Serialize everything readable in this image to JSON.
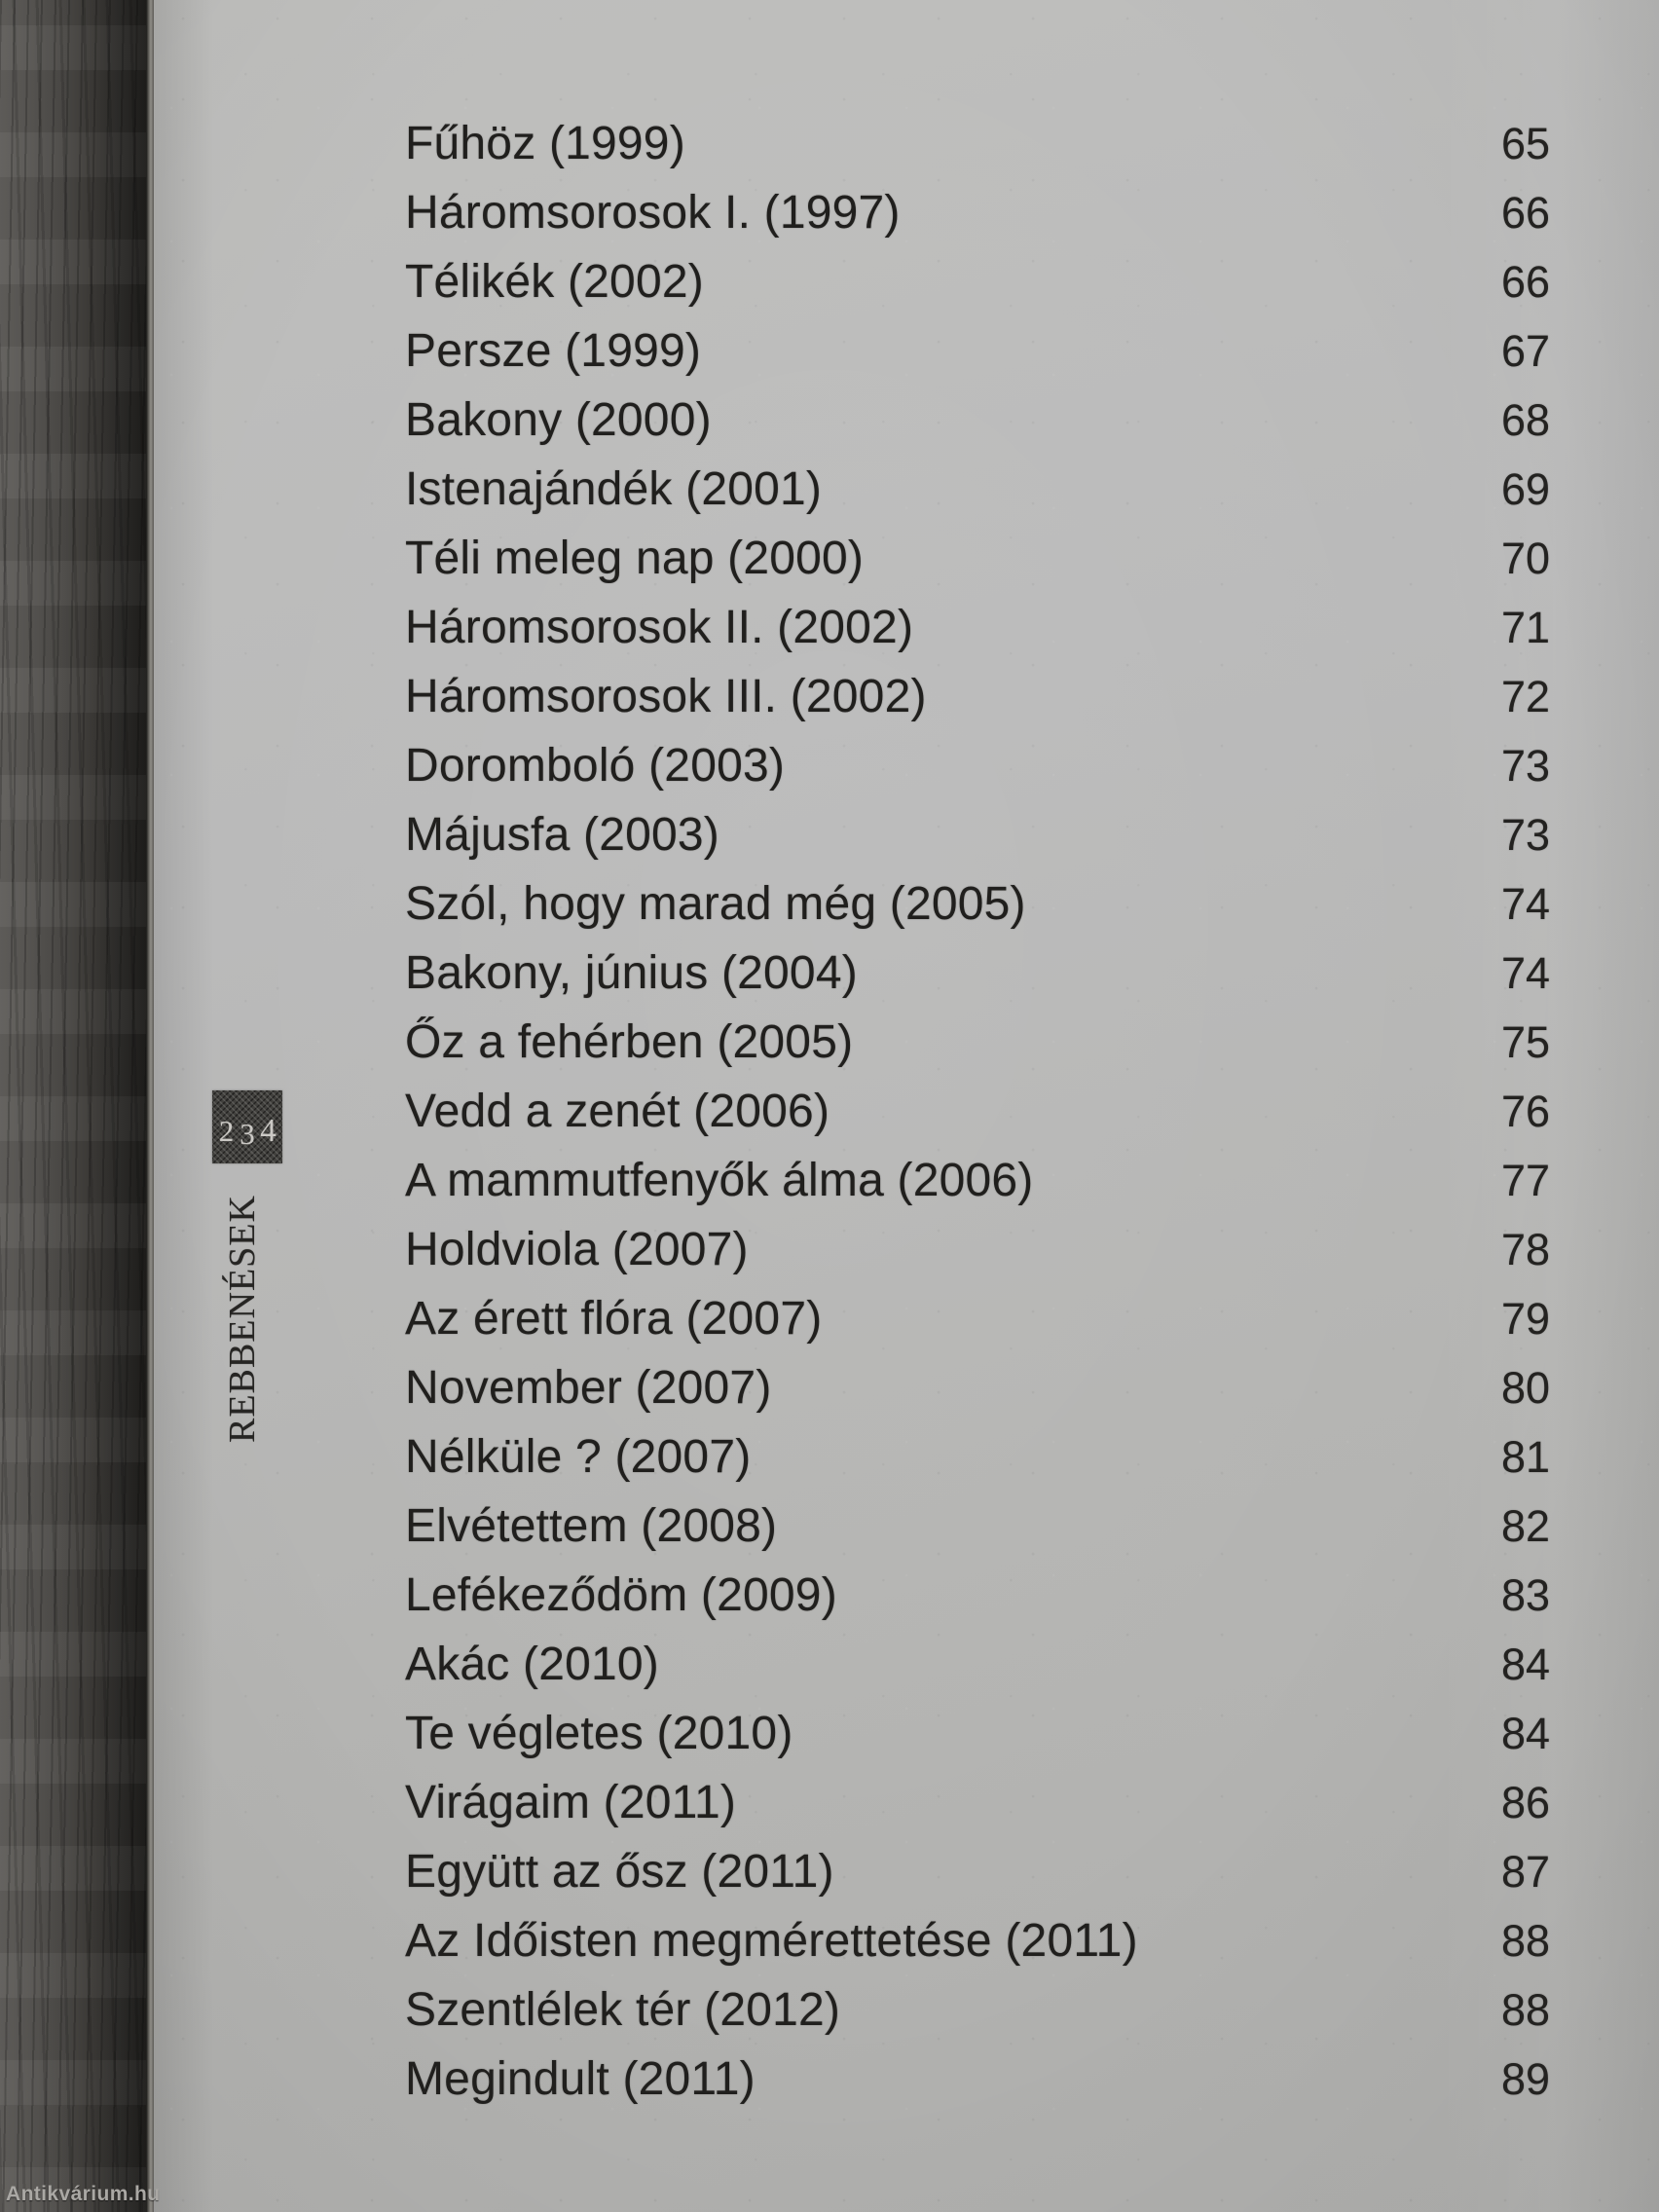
{
  "document": {
    "kind": "scanned-book-table-of-contents-page",
    "spine_page_number": "234",
    "spine_section_title": "REBBENÉSEK",
    "watermark": "Antikvárium.hu"
  },
  "toc": {
    "entries": [
      {
        "title": "Fűhöz (1999)",
        "page": "65"
      },
      {
        "title": "Háromsorosok I. (1997)",
        "page": "66"
      },
      {
        "title": "Télikék (2002)",
        "page": "66"
      },
      {
        "title": "Persze (1999)",
        "page": "67"
      },
      {
        "title": "Bakony (2000)",
        "page": "68"
      },
      {
        "title": "Istenajándék (2001)",
        "page": "69"
      },
      {
        "title": "Téli meleg nap (2000)",
        "page": "70"
      },
      {
        "title": "Háromsorosok II. (2002)",
        "page": "71"
      },
      {
        "title": "Háromsorosok III. (2002)",
        "page": "72"
      },
      {
        "title": "Doromboló (2003)",
        "page": "73"
      },
      {
        "title": "Májusfa (2003)",
        "page": "73"
      },
      {
        "title": "Szól, hogy marad még (2005)",
        "page": "74"
      },
      {
        "title": "Bakony, június (2004)",
        "page": "74"
      },
      {
        "title": "Őz a fehérben (2005)",
        "page": "75"
      },
      {
        "title": "Vedd a zenét (2006)",
        "page": "76"
      },
      {
        "title": "A mammutfenyők álma (2006)",
        "page": "77"
      },
      {
        "title": "Holdviola (2007)",
        "page": "78"
      },
      {
        "title": "Az érett flóra (2007)",
        "page": "79"
      },
      {
        "title": "November (2007)",
        "page": "80"
      },
      {
        "title": "Nélküle ? (2007)",
        "page": "81"
      },
      {
        "title": "Elvétettem (2008)",
        "page": "82"
      },
      {
        "title": "Lefékeződöm (2009)",
        "page": "83"
      },
      {
        "title": "Akác (2010)",
        "page": "84"
      },
      {
        "title": "Te végletes (2010)",
        "page": "84"
      },
      {
        "title": "Virágaim (2011)",
        "page": "86"
      },
      {
        "title": "Együtt az ősz (2011)",
        "page": "87"
      },
      {
        "title": "Az Időisten megmérettetése (2011)",
        "page": "88"
      },
      {
        "title": "Szentlélek tér (2012)",
        "page": "88"
      },
      {
        "title": "Megindult (2011)",
        "page": "89"
      }
    ]
  },
  "colors": {
    "paper": "#b8b8b6",
    "ink": "#201f1d",
    "wood_light": "#605e5b",
    "wood_dark": "#1e1d1b",
    "badge_bg": "#41403d",
    "badge_text": "#cbc9c5",
    "watermark_text": "#aaa8a4"
  }
}
